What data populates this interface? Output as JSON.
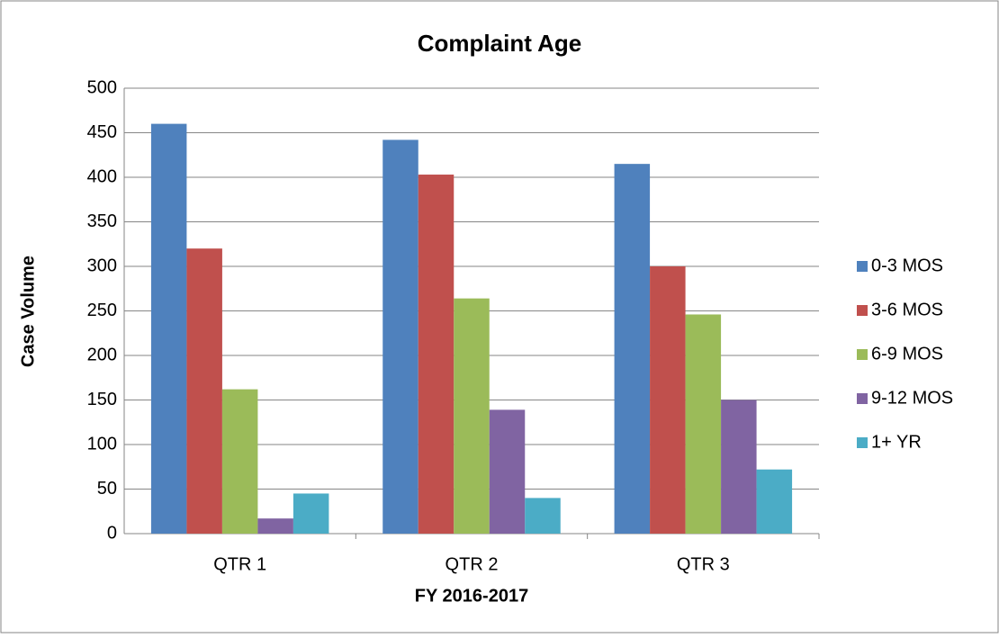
{
  "chart_data": {
    "type": "bar",
    "title": "Complaint Age",
    "x_label": "FY 2016-2017",
    "y_label": "Case Volume",
    "categories": [
      "QTR 1",
      "QTR 2",
      "QTR 3"
    ],
    "series": [
      {
        "name": "0-3 MOS",
        "color": "#4f81bd",
        "values": [
          460,
          442,
          415
        ]
      },
      {
        "name": "3-6 MOS",
        "color": "#c0504d",
        "values": [
          320,
          403,
          300
        ]
      },
      {
        "name": "6-9 MOS",
        "color": "#9bbb59",
        "values": [
          162,
          264,
          246
        ]
      },
      {
        "name": "9-12 MOS",
        "color": "#8064a2",
        "values": [
          17,
          139,
          150
        ]
      },
      {
        "name": "1+ YR",
        "color": "#4bacc6",
        "values": [
          45,
          40,
          72
        ]
      }
    ],
    "ylim": [
      0,
      500
    ],
    "yticks": [
      0,
      50,
      100,
      150,
      200,
      250,
      300,
      350,
      400,
      450,
      500
    ],
    "grid": true,
    "legend": "right"
  }
}
